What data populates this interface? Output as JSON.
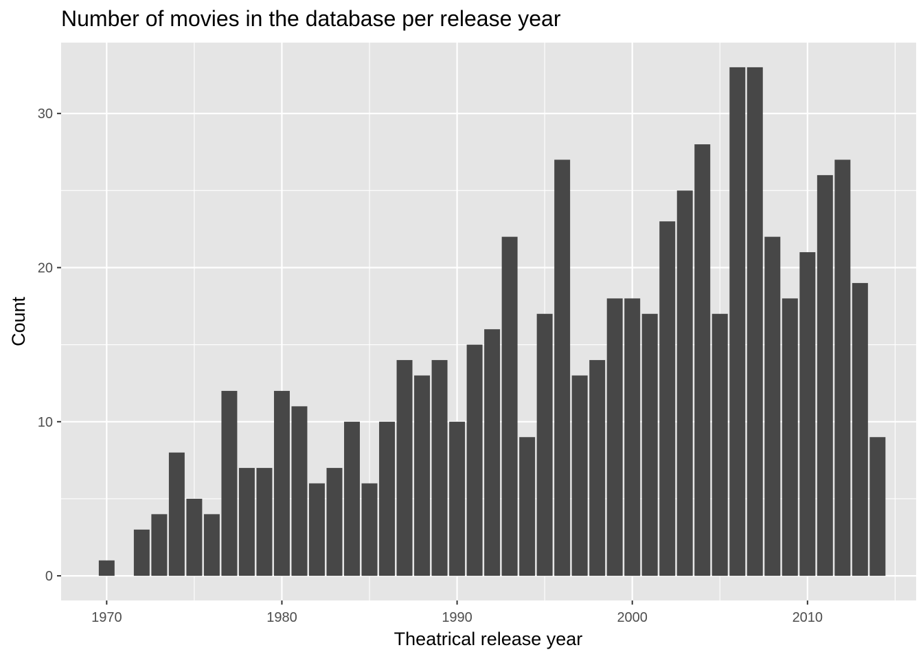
{
  "chart_data": {
    "type": "bar",
    "title": "Number of movies in the database per release year",
    "xlabel": "Theatrical release year",
    "ylabel": "Count",
    "x": [
      1970,
      1972,
      1973,
      1974,
      1975,
      1976,
      1977,
      1978,
      1979,
      1980,
      1981,
      1982,
      1983,
      1984,
      1985,
      1986,
      1987,
      1988,
      1989,
      1990,
      1991,
      1992,
      1993,
      1994,
      1995,
      1996,
      1997,
      1998,
      1999,
      2000,
      2001,
      2002,
      2003,
      2004,
      2005,
      2006,
      2007,
      2008,
      2009,
      2010,
      2011,
      2012,
      2013,
      2014
    ],
    "values": [
      1,
      3,
      4,
      8,
      5,
      4,
      12,
      7,
      7,
      12,
      11,
      6,
      7,
      10,
      6,
      10,
      14,
      13,
      14,
      10,
      15,
      16,
      22,
      9,
      17,
      27,
      13,
      14,
      18,
      18,
      17,
      23,
      25,
      28,
      17,
      33,
      33,
      22,
      18,
      21,
      26,
      27,
      19,
      9
    ],
    "xlim": [
      1967.4,
      2016.2
    ],
    "ylim": [
      -1.6,
      34.6
    ],
    "x_ticks": [
      1970,
      1980,
      1990,
      2000,
      2010
    ],
    "x_tick_labels": [
      "1970",
      "1980",
      "1990",
      "2000",
      "2010"
    ],
    "y_ticks": [
      0,
      10,
      20,
      30
    ],
    "y_tick_labels": [
      "0",
      "10",
      "20",
      "30"
    ],
    "grid": true,
    "legend": "none",
    "colors": {
      "bar": "#474747",
      "panel": "#e5e5e5",
      "grid": "#ffffff",
      "tick_label": "#4d4d4d",
      "text": "#000000"
    }
  }
}
